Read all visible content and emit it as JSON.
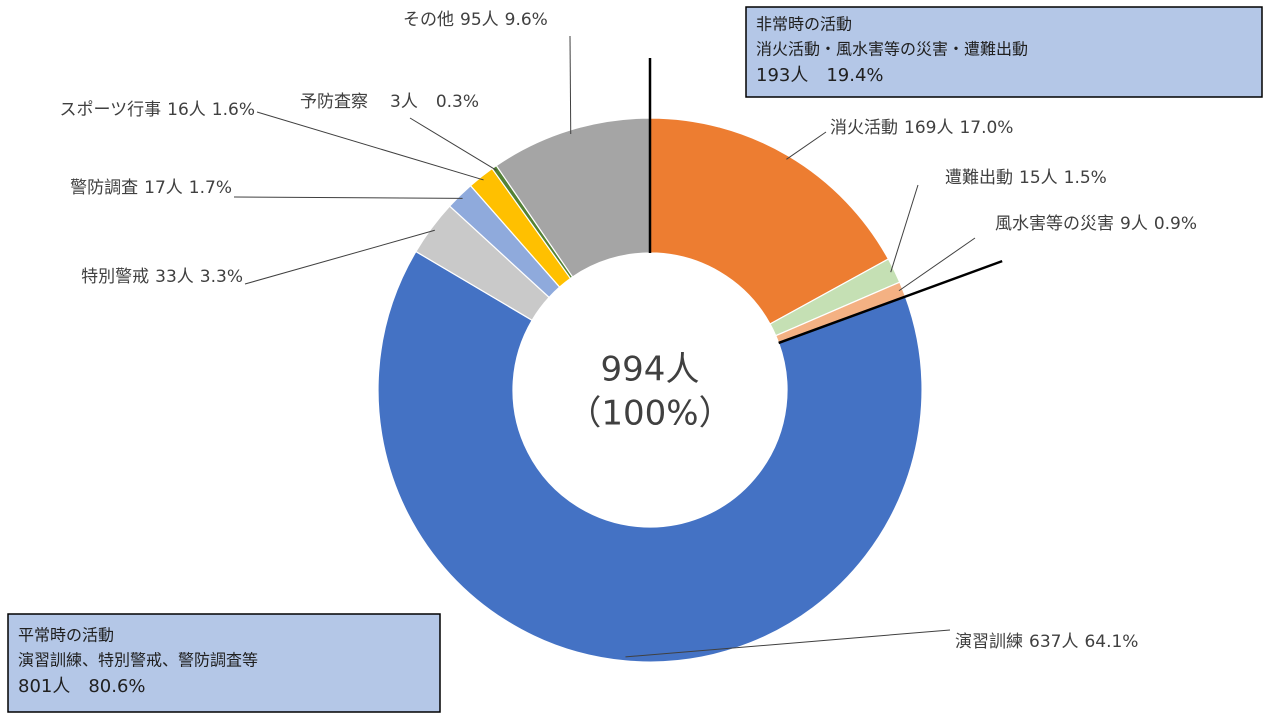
{
  "chart_data": {
    "type": "donut",
    "categories": [
      "消火活動",
      "遭難出動",
      "風水害等の災害",
      "演習訓練",
      "特別警戒",
      "警防調査",
      "スポーツ行事",
      "予防査察",
      "その他"
    ],
    "values": [
      169,
      15,
      9,
      637,
      33,
      17,
      16,
      3,
      95
    ],
    "value_labels": [
      "169人",
      "15人",
      "9人",
      "637人",
      "33人",
      "17人",
      "16人",
      "3人",
      "95人"
    ],
    "percents": [
      17.0,
      1.5,
      0.9,
      64.1,
      3.3,
      1.7,
      1.6,
      0.3,
      9.6
    ],
    "percent_labels": [
      "17.0%",
      "1.5%",
      "0.9%",
      "64.1%",
      "3.3%",
      "1.7%",
      "1.6%",
      "0.3%",
      "9.6%"
    ],
    "colors": [
      "#ED7D31",
      "#C5E0B4",
      "#F4B183",
      "#4472C4",
      "#C9C9C9",
      "#8FAADC",
      "#FFC000",
      "#548235",
      "#A5A5A5"
    ],
    "center_text": [
      "994人",
      "（100%）"
    ],
    "annotations": [
      {
        "lines": [
          "非常時の活動",
          "消火活動・風水害等の災害・遭難出動",
          "193人　19.4%"
        ]
      },
      {
        "lines": [
          "平常時の活動",
          "演習訓練、特別警戒、警防調査等",
          "801人　80.6%"
        ]
      }
    ]
  }
}
